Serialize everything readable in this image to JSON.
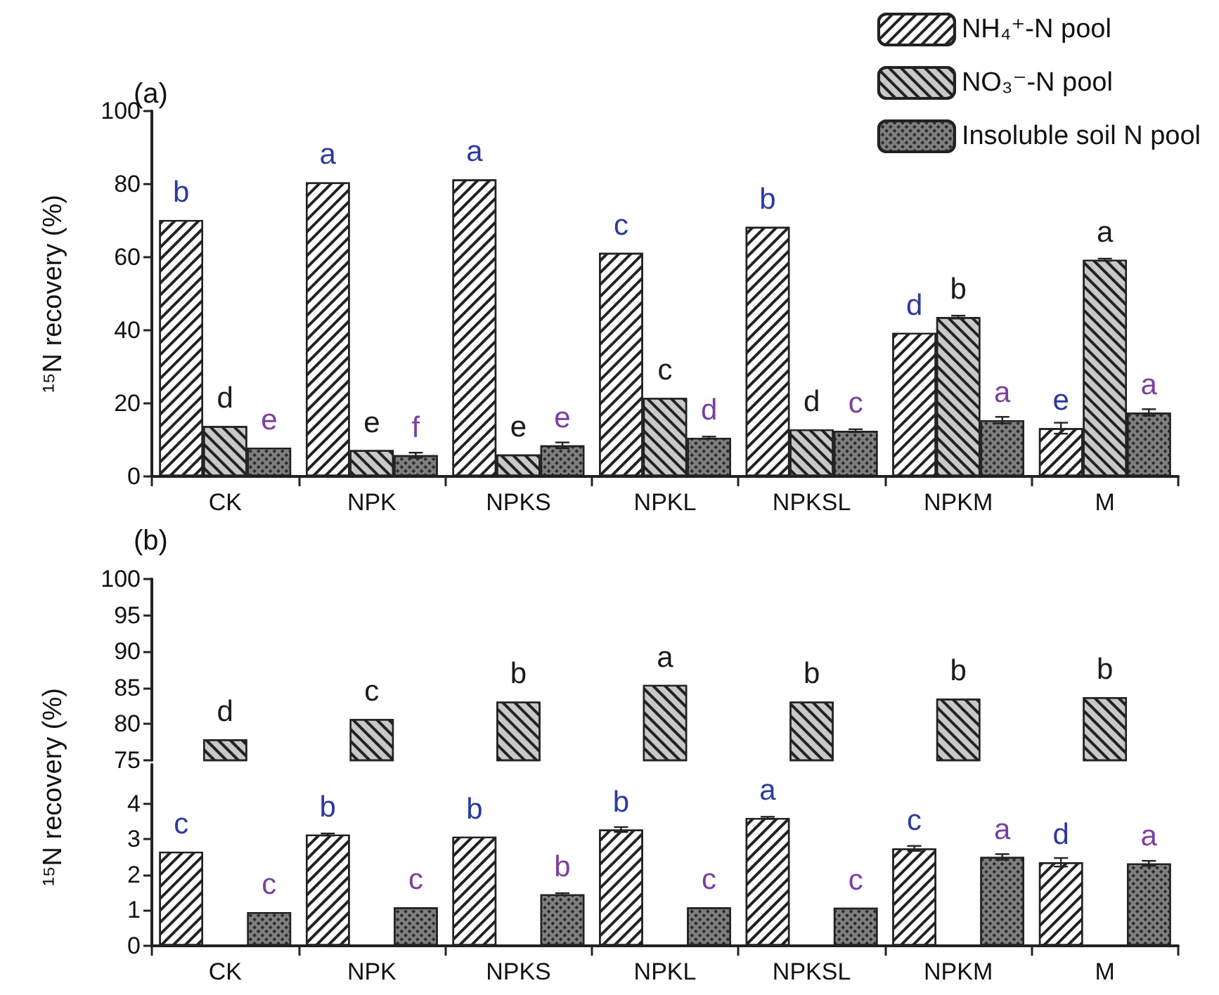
{
  "chart_data": [
    {
      "type": "bar",
      "title": "(a)",
      "ylabel": "¹⁵N recovery (%)",
      "categories": [
        "CK",
        "NPK",
        "NPKS",
        "NPKL",
        "NPKSL",
        "NPKM",
        "M"
      ],
      "series": [
        {
          "name": "NH₄⁺-N pool",
          "color": "#ffffff",
          "values": [
            70.2,
            80.5,
            81.3,
            61.2,
            68.3,
            39.3,
            13.2
          ],
          "errors": [
            null,
            null,
            null,
            null,
            null,
            null,
            1.5
          ],
          "value_labels": [
            "b",
            "a",
            "a",
            "c",
            "b",
            "d",
            "e"
          ]
        },
        {
          "name": "NO₃⁻-N pool",
          "color": "#c8c8c8",
          "values": [
            13.8,
            7.2,
            6.0,
            21.5,
            12.9,
            43.6,
            59.3
          ],
          "errors": [
            null,
            null,
            null,
            null,
            null,
            0.4,
            0.3
          ],
          "value_labels": [
            "d",
            "e",
            "e",
            "c",
            "d",
            "b",
            "a"
          ]
        },
        {
          "name": "Insoluble soil N pool",
          "color": "#808080",
          "values": [
            7.9,
            5.8,
            8.5,
            10.6,
            12.5,
            15.4,
            17.5
          ],
          "errors": [
            null,
            0.7,
            0.8,
            0.3,
            0.4,
            0.9,
            0.9
          ],
          "value_labels": [
            "e",
            "f",
            "e",
            "d",
            "c",
            "a",
            "a"
          ]
        }
      ],
      "ylim": [
        0,
        100
      ],
      "yticks": [
        0,
        20,
        40,
        60,
        80,
        100
      ],
      "legend": "top right"
    },
    {
      "type": "bar",
      "title": "(b)",
      "categories": [
        null,
        null,
        null,
        null,
        null,
        null,
        null
      ],
      "series": [
        {
          "color": "#ffffff",
          "values": [
            null,
            null,
            null,
            null,
            null,
            null,
            null
          ]
        },
        {
          "color": "#c8c8c8",
          "values": [
            77.9,
            80.7,
            83.1,
            85.4,
            83.1,
            83.5,
            83.7
          ],
          "value_labels": [
            "d",
            "c",
            "b",
            "a",
            "b",
            "b",
            "b"
          ]
        },
        {
          "color": "#808080",
          "values": [
            null,
            null,
            null,
            null,
            null,
            null,
            null
          ]
        }
      ],
      "ylim": [
        75,
        100
      ],
      "yticks": [
        75,
        80,
        85,
        90,
        95,
        100
      ],
      "tick_labels": "y"
    },
    {
      "type": "bar",
      "ylabel": "¹⁵N recovery (%)",
      "categories": [
        "CK",
        "NPK",
        "NPKS",
        "NPKL",
        "NPKSL",
        "NPKM",
        "M"
      ],
      "series": [
        {
          "color": "#ffffff",
          "values": [
            2.65,
            3.13,
            3.07,
            3.27,
            3.6,
            2.74,
            2.35
          ],
          "errors": [
            null,
            0.03,
            null,
            0.07,
            0.03,
            0.07,
            0.12
          ],
          "value_labels": [
            "c",
            "b",
            "b",
            "b",
            "a",
            "c",
            "d"
          ]
        },
        {
          "color": "#c8c8c8",
          "values": [
            null,
            null,
            null,
            null,
            null,
            null,
            null
          ]
        },
        {
          "color": "#808080",
          "values": [
            0.95,
            1.08,
            1.45,
            1.08,
            1.07,
            2.5,
            2.32
          ],
          "errors": [
            null,
            null,
            0.03,
            null,
            null,
            0.08,
            0.07
          ],
          "value_labels": [
            "c",
            "c",
            "b",
            "c",
            "c",
            "a",
            "a"
          ]
        }
      ],
      "ylim": [
        0,
        5.1
      ],
      "yticks": [
        0,
        1,
        2,
        3,
        4
      ]
    }
  ]
}
